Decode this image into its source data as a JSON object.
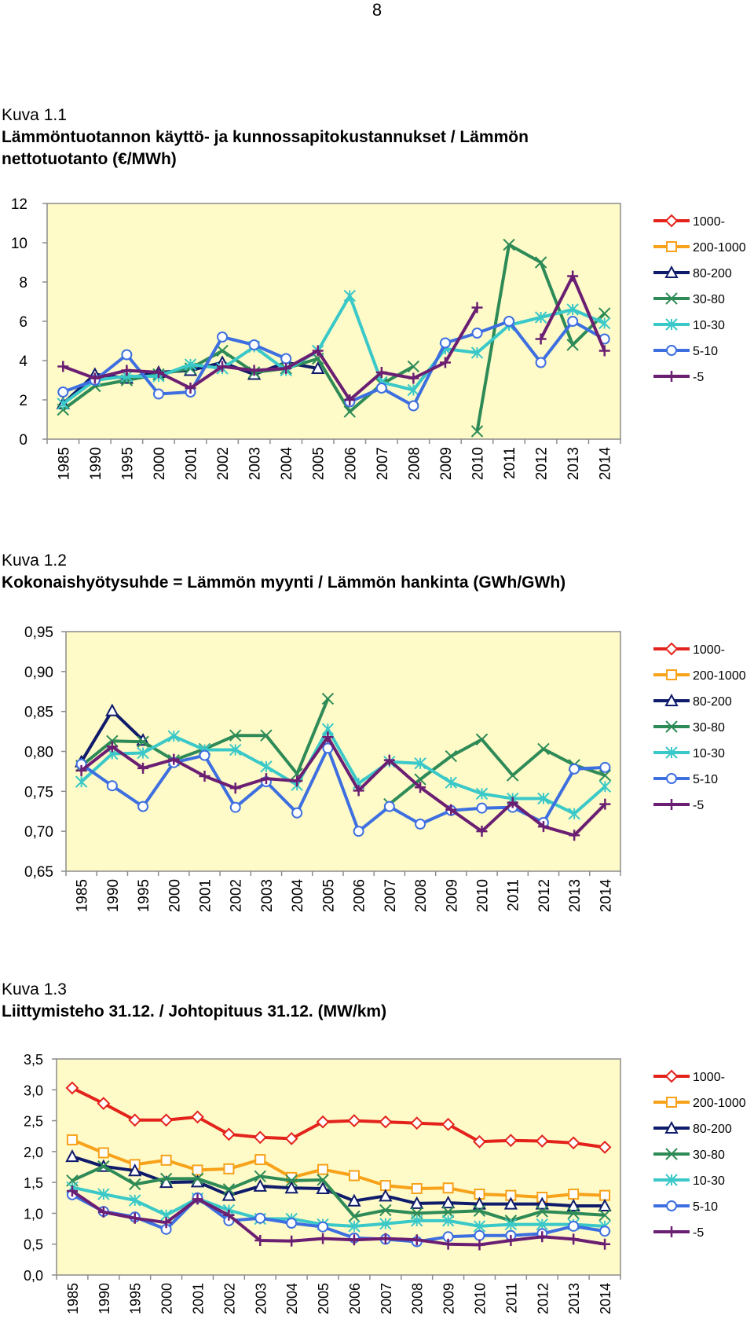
{
  "page_number": "8",
  "colors": {
    "1000-": "#e3231b",
    "200-1000": "#f7a21a",
    "80-200": "#0f1b6b",
    "30-80": "#2e8b57",
    "10-30": "#3ac8c8",
    "5-10": "#3d6fe0",
    "-5": "#6b1f73",
    "plot_bg": "#fffbc8"
  },
  "figures": [
    {
      "kuva": "Kuva 1.1",
      "title_line1": "Lämmöntuotannon käyttö- ja kunnossapitokustannukset / Lämmön",
      "title_line2": "nettotuotanto (€/MWh)"
    },
    {
      "kuva": "Kuva 1.2",
      "title_line1": "Kokonaishyötysuhde = Lämmön myynti / Lämmön hankinta (GWh/GWh)",
      "title_line2": ""
    },
    {
      "kuva": "Kuva 1.3",
      "title_line1": "Liittymisteho 31.12. / Johtopituus 31.12. (MW/km)",
      "title_line2": ""
    }
  ],
  "chart_data": [
    {
      "type": "line",
      "title": "Lämmöntuotannon käyttö- ja kunnossapitokustannukset / Lämmön nettotuotanto (€/MWh)",
      "categories": [
        "1985",
        "1990",
        "1995",
        "2000",
        "2001",
        "2002",
        "2003",
        "2004",
        "2005",
        "2006",
        "2007",
        "2008",
        "2009",
        "2010",
        "2011",
        "2012",
        "2013",
        "2014"
      ],
      "ylim": [
        0,
        12
      ],
      "yticks": [
        "0",
        "2",
        "4",
        "6",
        "8",
        "10",
        "12"
      ],
      "ytick_values": [
        0,
        2,
        4,
        6,
        8,
        10,
        12
      ],
      "series": [
        {
          "name": "1000-",
          "marker": "diamond",
          "values": [
            null,
            null,
            null,
            null,
            null,
            null,
            null,
            null,
            null,
            null,
            null,
            null,
            null,
            null,
            null,
            null,
            null,
            null
          ]
        },
        {
          "name": "200-1000",
          "marker": "square",
          "values": [
            null,
            null,
            null,
            null,
            null,
            null,
            null,
            null,
            null,
            null,
            null,
            null,
            null,
            null,
            null,
            null,
            null,
            null
          ]
        },
        {
          "name": "80-200",
          "marker": "triangle",
          "values": [
            1.8,
            3.3,
            3.1,
            3.4,
            3.5,
            3.9,
            3.3,
            3.9,
            3.6,
            null,
            null,
            null,
            null,
            null,
            null,
            null,
            null,
            null
          ]
        },
        {
          "name": "30-80",
          "marker": "x",
          "values": [
            1.5,
            2.7,
            3.0,
            3.3,
            3.6,
            4.5,
            3.4,
            3.6,
            4.1,
            1.4,
            2.8,
            3.7,
            null,
            0.4,
            9.9,
            9.0,
            4.8,
            6.4
          ]
        },
        {
          "name": "10-30",
          "marker": "star",
          "values": [
            1.8,
            3.0,
            3.2,
            3.2,
            3.8,
            3.6,
            4.7,
            3.5,
            4.5,
            7.3,
            2.9,
            2.5,
            4.6,
            4.4,
            5.8,
            6.2,
            6.6,
            5.9
          ]
        },
        {
          "name": "5-10",
          "marker": "circle",
          "values": [
            2.4,
            3.0,
            4.3,
            2.3,
            2.4,
            5.2,
            4.8,
            4.1,
            null,
            1.9,
            2.6,
            1.7,
            4.9,
            5.4,
            6.0,
            3.9,
            6.0,
            5.1
          ]
        },
        {
          "name": "-5",
          "marker": "plus",
          "values": [
            3.7,
            3.1,
            3.5,
            3.4,
            2.6,
            3.7,
            3.5,
            3.6,
            4.5,
            2.0,
            3.4,
            3.1,
            3.9,
            6.7,
            null,
            5.1,
            8.3,
            4.5
          ]
        }
      ]
    },
    {
      "type": "line",
      "title": "Kokonaishyötysuhde = Lämmön myynti / Lämmön hankinta (GWh/GWh)",
      "categories": [
        "1985",
        "1990",
        "1995",
        "2000",
        "2001",
        "2002",
        "2003",
        "2004",
        "2005",
        "2006",
        "2007",
        "2008",
        "2009",
        "2010",
        "2011",
        "2012",
        "2013",
        "2014"
      ],
      "ylim": [
        0.65,
        0.95
      ],
      "yticks": [
        "0,65",
        "0,70",
        "0,75",
        "0,80",
        "0,85",
        "0,90",
        "0,95"
      ],
      "ytick_values": [
        0.65,
        0.7,
        0.75,
        0.8,
        0.85,
        0.9,
        0.95
      ],
      "series": [
        {
          "name": "1000-",
          "marker": "diamond",
          "values": [
            null,
            null,
            null,
            null,
            null,
            null,
            null,
            null,
            null,
            null,
            null,
            null,
            null,
            null,
            null,
            null,
            null,
            null
          ]
        },
        {
          "name": "200-1000",
          "marker": "square",
          "values": [
            null,
            null,
            null,
            null,
            null,
            null,
            null,
            null,
            null,
            null,
            null,
            null,
            null,
            null,
            null,
            null,
            null,
            null
          ]
        },
        {
          "name": "80-200",
          "marker": "triangle",
          "values": [
            0.787,
            0.851,
            0.814,
            null,
            null,
            null,
            null,
            null,
            null,
            null,
            null,
            null,
            null,
            null,
            null,
            null,
            null,
            null
          ]
        },
        {
          "name": "30-80",
          "marker": "x",
          "values": [
            0.782,
            0.813,
            0.812,
            0.789,
            0.803,
            0.82,
            0.82,
            0.772,
            0.866,
            null,
            0.734,
            0.765,
            0.794,
            0.815,
            0.77,
            0.803,
            0.783,
            0.77
          ]
        },
        {
          "name": "10-30",
          "marker": "star",
          "values": [
            0.762,
            0.797,
            0.798,
            0.819,
            0.802,
            0.802,
            0.781,
            0.758,
            0.828,
            0.76,
            0.787,
            0.785,
            0.761,
            0.747,
            0.741,
            0.741,
            0.722,
            0.756
          ]
        },
        {
          "name": "5-10",
          "marker": "circle",
          "values": [
            0.784,
            0.757,
            0.731,
            0.786,
            0.795,
            0.73,
            0.762,
            0.723,
            0.804,
            0.7,
            0.731,
            0.709,
            0.726,
            0.729,
            0.73,
            0.711,
            0.778,
            0.78
          ]
        },
        {
          "name": "-5",
          "marker": "plus",
          "values": [
            0.776,
            0.806,
            0.779,
            0.79,
            0.769,
            0.754,
            0.766,
            0.763,
            0.818,
            0.751,
            0.789,
            0.755,
            0.727,
            0.7,
            0.736,
            0.706,
            0.695,
            0.734
          ]
        }
      ]
    },
    {
      "type": "line",
      "title": "Liittymisteho 31.12. / Johtopituus 31.12. (MW/km)",
      "categories": [
        "1985",
        "1990",
        "1995",
        "2000",
        "2001",
        "2002",
        "2003",
        "2004",
        "2005",
        "2006",
        "2007",
        "2008",
        "2009",
        "2010",
        "2011",
        "2012",
        "2013",
        "2014"
      ],
      "ylim": [
        0.0,
        3.5
      ],
      "yticks": [
        "0,0",
        "0,5",
        "1,0",
        "1,5",
        "2,0",
        "2,5",
        "3,0",
        "3,5"
      ],
      "ytick_values": [
        0,
        0.5,
        1.0,
        1.5,
        2.0,
        2.5,
        3.0,
        3.5
      ],
      "series": [
        {
          "name": "1000-",
          "marker": "diamond",
          "values": [
            3.03,
            2.78,
            2.51,
            2.51,
            2.56,
            2.28,
            2.23,
            2.21,
            2.48,
            2.5,
            2.48,
            2.46,
            2.44,
            2.16,
            2.18,
            2.17,
            2.14,
            2.07
          ]
        },
        {
          "name": "200-1000",
          "marker": "square",
          "values": [
            2.19,
            1.98,
            1.79,
            1.86,
            1.7,
            1.72,
            1.87,
            1.58,
            1.71,
            1.61,
            1.45,
            1.4,
            1.41,
            1.31,
            1.29,
            1.26,
            1.31,
            1.29
          ]
        },
        {
          "name": "80-200",
          "marker": "triangle",
          "values": [
            1.92,
            1.76,
            1.69,
            1.5,
            1.51,
            1.29,
            1.44,
            1.41,
            1.4,
            1.2,
            1.28,
            1.16,
            1.17,
            1.15,
            1.15,
            1.15,
            1.12,
            1.12
          ]
        },
        {
          "name": "30-80",
          "marker": "x",
          "values": [
            1.53,
            1.76,
            1.47,
            1.56,
            1.56,
            1.39,
            1.6,
            1.53,
            1.54,
            0.95,
            1.05,
            1.0,
            1.02,
            1.04,
            0.88,
            1.03,
            1.0,
            0.97
          ]
        },
        {
          "name": "10-30",
          "marker": "star",
          "values": [
            1.42,
            1.31,
            1.21,
            0.97,
            1.24,
            1.05,
            0.91,
            0.91,
            0.82,
            0.79,
            0.83,
            0.88,
            0.88,
            0.79,
            0.82,
            0.82,
            0.82,
            0.79
          ]
        },
        {
          "name": "5-10",
          "marker": "circle",
          "values": [
            1.3,
            1.03,
            0.94,
            0.74,
            1.25,
            0.88,
            0.92,
            0.84,
            0.78,
            0.6,
            0.58,
            0.54,
            0.62,
            0.64,
            0.64,
            0.67,
            0.79,
            0.71
          ]
        },
        {
          "name": "-5",
          "marker": "plus",
          "values": [
            1.36,
            1.02,
            0.92,
            0.85,
            1.23,
            0.97,
            0.56,
            0.55,
            0.59,
            0.57,
            0.59,
            0.57,
            0.5,
            0.49,
            0.56,
            0.62,
            0.58,
            0.5
          ]
        }
      ]
    }
  ]
}
